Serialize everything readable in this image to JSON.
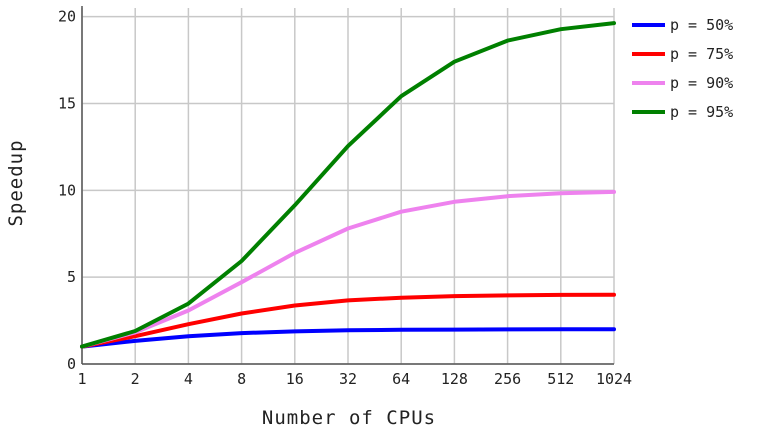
{
  "chart_data": {
    "type": "line",
    "title": "",
    "xlabel": "Number of CPUs",
    "ylabel": "Speedup",
    "x_scale": "log2",
    "x": [
      1,
      2,
      4,
      8,
      16,
      32,
      64,
      128,
      256,
      512,
      1024
    ],
    "x_tick_labels": [
      "1",
      "2",
      "4",
      "8",
      "16",
      "32",
      "64",
      "128",
      "256",
      "512",
      "1024"
    ],
    "y_ticks": [
      0,
      5,
      10,
      15,
      20
    ],
    "y_tick_labels": [
      "0",
      "5",
      "10",
      "15",
      "20"
    ],
    "ylim": [
      0,
      20.5
    ],
    "grid": true,
    "legend_position": "top-right, outside plot",
    "series": [
      {
        "name": "p = 50%",
        "color": "#0000ff",
        "values": [
          1.0,
          1.33,
          1.6,
          1.78,
          1.88,
          1.94,
          1.97,
          1.98,
          1.99,
          2.0,
          2.0
        ]
      },
      {
        "name": "p = 75%",
        "color": "#ff0000",
        "values": [
          1.0,
          1.6,
          2.29,
          2.91,
          3.37,
          3.66,
          3.82,
          3.91,
          3.95,
          3.98,
          3.99
        ]
      },
      {
        "name": "p = 90%",
        "color": "#ee82ee",
        "values": [
          1.0,
          1.82,
          3.08,
          4.71,
          6.4,
          7.8,
          8.77,
          9.34,
          9.66,
          9.83,
          9.91
        ]
      },
      {
        "name": "p = 95%",
        "color": "#008000",
        "values": [
          1.0,
          1.9,
          3.48,
          5.93,
          9.14,
          12.55,
          15.42,
          17.41,
          18.62,
          19.28,
          19.63
        ]
      }
    ]
  }
}
